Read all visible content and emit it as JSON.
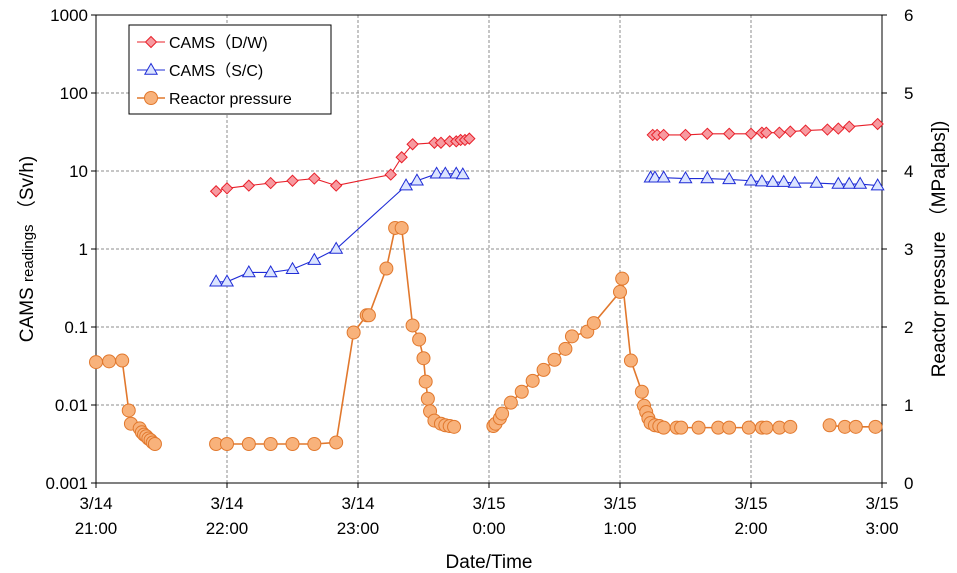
{
  "chart_data": {
    "type": "line",
    "xlabel": "Date/Time",
    "ylabel_left_main": "CAMS",
    "ylabel_left_small": "readings",
    "ylabel_left_unit": "（Sv/h)",
    "ylabel_right": "Reactor pressure （MPa[abs])",
    "x_range_minutes_after_3_14_21_00": [
      0,
      360
    ],
    "x_ticks": [
      {
        "date": "3/14",
        "time": "21:00"
      },
      {
        "date": "3/14",
        "time": "22:00"
      },
      {
        "date": "3/14",
        "time": "23:00"
      },
      {
        "date": "3/15",
        "time": "0:00"
      },
      {
        "date": "3/15",
        "time": "1:00"
      },
      {
        "date": "3/15",
        "time": "2:00"
      },
      {
        "date": "3/15",
        "time": "3:00"
      }
    ],
    "y_left_scale": "log",
    "y_left_range": [
      0.001,
      1000
    ],
    "y_left_ticks": [
      "0.001",
      "0.01",
      "0.1",
      "1",
      "10",
      "100",
      "1000"
    ],
    "y_right_range": [
      0,
      6
    ],
    "y_right_ticks": [
      "0",
      "1",
      "2",
      "3",
      "4",
      "5",
      "6"
    ],
    "grid": true,
    "legend_position": "top-left",
    "legend": [
      "CAMS（D/W)",
      "CAMS（S/C)",
      "Reactor pressure"
    ],
    "series": [
      {
        "name": "CAMS（D/W)",
        "axis": "left",
        "color": "#e8202a",
        "marker": "diamond",
        "x": [
          "3/14 21:55",
          "3/14 22:00",
          "3/14 22:10",
          "3/14 22:20",
          "3/14 22:30",
          "3/14 22:40",
          "3/14 22:50",
          "3/14 23:15",
          "3/14 23:20",
          "3/14 23:25",
          "3/14 23:35",
          "3/14 23:38",
          "3/14 23:42",
          "3/14 23:45",
          "3/14 23:47",
          "3/14 23:49",
          "3/14 23:51",
          "3/15 1:15",
          "3/15 1:17",
          "3/15 1:20",
          "3/15 1:30",
          "3/15 1:40",
          "3/15 1:50",
          "3/15 2:00",
          "3/15 2:05",
          "3/15 2:07",
          "3/15 2:13",
          "3/15 2:18",
          "3/15 2:25",
          "3/15 2:35",
          "3/15 2:40",
          "3/15 2:45",
          "3/15 2:58"
        ],
        "y": [
          5.5,
          6.0,
          6.5,
          7.0,
          7.5,
          8.0,
          6.5,
          9.0,
          15,
          22,
          23,
          23,
          24,
          24,
          25,
          25,
          26,
          29,
          29,
          29,
          29,
          30,
          30,
          30,
          31,
          31,
          31,
          32,
          33,
          34,
          35,
          37,
          40
        ]
      },
      {
        "name": "CAMS（S/C)",
        "axis": "left",
        "color": "#1f2cd6",
        "marker": "triangle",
        "x": [
          "3/14 21:55",
          "3/14 22:00",
          "3/14 22:10",
          "3/14 22:20",
          "3/14 22:30",
          "3/14 22:40",
          "3/14 22:50",
          "3/14 23:22",
          "3/14 23:27",
          "3/14 23:36",
          "3/14 23:40",
          "3/14 23:45",
          "3/14 23:48",
          "3/15 1:14",
          "3/15 1:16",
          "3/15 1:20",
          "3/15 1:30",
          "3/15 1:40",
          "3/15 1:50",
          "3/15 2:00",
          "3/15 2:05",
          "3/15 2:10",
          "3/15 2:15",
          "3/15 2:20",
          "3/15 2:30",
          "3/15 2:40",
          "3/15 2:45",
          "3/15 2:50",
          "3/15 2:58"
        ],
        "y": [
          0.38,
          0.38,
          0.5,
          0.5,
          0.55,
          0.72,
          1.0,
          6.5,
          7.5,
          9.2,
          9.2,
          9.2,
          9.0,
          8.2,
          8.2,
          8.2,
          8.0,
          8.0,
          7.8,
          7.5,
          7.3,
          7.2,
          7.2,
          7.0,
          7.0,
          6.8,
          6.8,
          6.8,
          6.5
        ]
      },
      {
        "name": "Reactor pressure",
        "axis": "right",
        "color": "#f5a967",
        "line_color": "#e1782d",
        "marker": "circle",
        "x": [
          "3/14 21:00",
          "3/14 21:06",
          "3/14 21:12",
          "3/14 21:15",
          "3/14 21:16",
          "3/14 21:20",
          "3/14 21:21",
          "3/14 21:22",
          "3/14 21:23",
          "3/14 21:24",
          "3/14 21:25",
          "3/14 21:26",
          "3/14 21:27",
          "3/14 21:55",
          "3/14 22:00",
          "3/14 22:10",
          "3/14 22:20",
          "3/14 22:30",
          "3/14 22:40",
          "3/14 22:50",
          "3/14 22:58",
          "3/14 23:04",
          "3/14 23:05",
          "3/14 23:13",
          "3/14 23:17",
          "3/14 23:20",
          "3/14 23:25",
          "3/14 23:28",
          "3/14 23:30",
          "3/14 23:31",
          "3/14 23:32",
          "3/14 23:33",
          "3/14 23:35",
          "3/14 23:38",
          "3/14 23:40",
          "3/14 23:42",
          "3/14 23:44",
          "3/15 0:02",
          "3/15 0:03",
          "3/15 0:05",
          "3/15 0:06",
          "3/15 0:10",
          "3/15 0:15",
          "3/15 0:20",
          "3/15 0:25",
          "3/15 0:30",
          "3/15 0:35",
          "3/15 0:38",
          "3/15 0:45",
          "3/15 0:48",
          "3/15 1:00",
          "3/15 1:01",
          "3/15 1:05",
          "3/15 1:10",
          "3/15 1:11",
          "3/15 1:12",
          "3/15 1:13",
          "3/15 1:14",
          "3/15 1:16",
          "3/15 1:18",
          "3/15 1:20",
          "3/15 1:26",
          "3/15 1:28",
          "3/15 1:36",
          "3/15 1:45",
          "3/15 1:50",
          "3/15 1:59",
          "3/15 2:05",
          "3/15 2:07",
          "3/15 2:13",
          "3/15 2:18",
          "3/15 2:36",
          "3/15 2:43",
          "3/15 2:48",
          "3/15 2:57"
        ],
        "y": [
          1.55,
          1.56,
          1.57,
          0.93,
          0.76,
          0.7,
          0.65,
          0.62,
          0.6,
          0.57,
          0.55,
          0.52,
          0.5,
          0.5,
          0.5,
          0.5,
          0.5,
          0.5,
          0.5,
          0.52,
          1.93,
          2.15,
          2.15,
          2.75,
          3.27,
          3.27,
          2.02,
          1.84,
          1.6,
          1.3,
          1.08,
          0.92,
          0.8,
          0.76,
          0.74,
          0.73,
          0.72,
          0.73,
          0.76,
          0.83,
          0.89,
          1.03,
          1.17,
          1.31,
          1.45,
          1.58,
          1.72,
          1.88,
          1.94,
          2.05,
          2.45,
          2.62,
          1.57,
          1.17,
          0.99,
          0.91,
          0.83,
          0.77,
          0.74,
          0.73,
          0.71,
          0.71,
          0.71,
          0.71,
          0.71,
          0.71,
          0.71,
          0.71,
          0.71,
          0.71,
          0.72,
          0.74,
          0.72,
          0.72,
          0.72
        ]
      }
    ]
  }
}
